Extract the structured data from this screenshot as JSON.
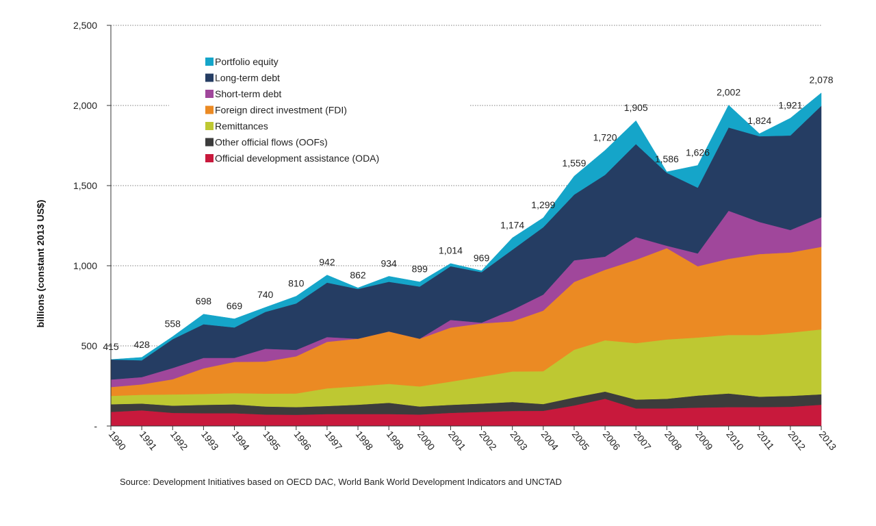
{
  "chart_data": {
    "type": "area",
    "stacked": true,
    "ylabel": "billions (constant 2013 US$)",
    "ylim": [
      0,
      2500
    ],
    "yticks": [
      0,
      500,
      1000,
      1500,
      2000,
      2500
    ],
    "ytick_labels": [
      "-",
      "500",
      "1,000",
      "1,500",
      "2,000",
      "2,500"
    ],
    "grid": "horizontal dotted",
    "legend_position": "top-left",
    "x": [
      "1990",
      "1991",
      "1992",
      "1993",
      "1994",
      "1995",
      "1996",
      "1997",
      "1998",
      "1999",
      "2000",
      "2001",
      "2002",
      "2003",
      "2004",
      "2005",
      "2006",
      "2007",
      "2008",
      "2009",
      "2010",
      "2011",
      "2012",
      "2013"
    ],
    "series": [
      {
        "name": "Official development assistance (ODA)",
        "color": "#c8193c",
        "values": [
          88,
          98,
          82,
          80,
          80,
          72,
          70,
          75,
          75,
          75,
          72,
          82,
          88,
          94,
          95,
          128,
          170,
          110,
          110,
          115,
          118,
          118,
          120,
          133
        ]
      },
      {
        "name": "Other official flows (OOFs)",
        "color": "#3c3c3c",
        "values": [
          48,
          42,
          45,
          52,
          55,
          50,
          48,
          50,
          58,
          70,
          50,
          50,
          52,
          56,
          42,
          50,
          45,
          55,
          60,
          75,
          85,
          65,
          68,
          65
        ]
      },
      {
        "name": "Remittances",
        "color": "#bec832",
        "values": [
          52,
          55,
          70,
          68,
          70,
          80,
          85,
          110,
          115,
          118,
          125,
          145,
          168,
          190,
          205,
          298,
          320,
          352,
          370,
          362,
          365,
          385,
          395,
          405
        ]
      },
      {
        "name": "Foreign direct investment (FDI)",
        "color": "#eb8a23",
        "values": [
          55,
          65,
          95,
          160,
          195,
          200,
          232,
          290,
          297,
          327,
          298,
          337,
          332,
          313,
          378,
          423,
          440,
          520,
          570,
          445,
          475,
          505,
          500,
          515
        ]
      },
      {
        "name": "Short-term debt",
        "color": "#a0479b",
        "values": [
          47,
          45,
          70,
          65,
          25,
          80,
          40,
          30,
          0,
          0,
          0,
          48,
          5,
          72,
          100,
          135,
          82,
          142,
          15,
          80,
          300,
          200,
          140,
          185
        ]
      },
      {
        "name": "Long-term debt",
        "color": "#253d63",
        "values": [
          125,
          105,
          180,
          210,
          190,
          230,
          290,
          340,
          310,
          310,
          325,
          335,
          315,
          375,
          420,
          410,
          510,
          580,
          455,
          410,
          520,
          535,
          590,
          695
        ]
      },
      {
        "name": "Portfolio equity",
        "color": "#15a5c9",
        "values": [
          0,
          18,
          16,
          63,
          54,
          28,
          45,
          47,
          7,
          34,
          29,
          17,
          9,
          74,
          59,
          115,
          153,
          146,
          6,
          139,
          139,
          16,
          108,
          80
        ]
      }
    ],
    "totals": [
      415,
      428,
      558,
      698,
      669,
      740,
      810,
      942,
      862,
      934,
      899,
      1014,
      969,
      1174,
      1299,
      1559,
      1720,
      1905,
      1586,
      1626,
      2002,
      1824,
      1921,
      2078
    ],
    "total_labels": [
      "415",
      "428",
      "558",
      "698",
      "669",
      "740",
      "810",
      "942",
      "862",
      "934",
      "899",
      "1,014",
      "969",
      "1,174",
      "1,299",
      "1,559",
      "1,720",
      "1,905",
      "1,586",
      "1,626",
      "2,002",
      "1,824",
      "1,921",
      "2,078"
    ],
    "source": "Source: Development Initiatives based on OECD DAC, World Bank World Development Indicators and UNCTAD"
  }
}
